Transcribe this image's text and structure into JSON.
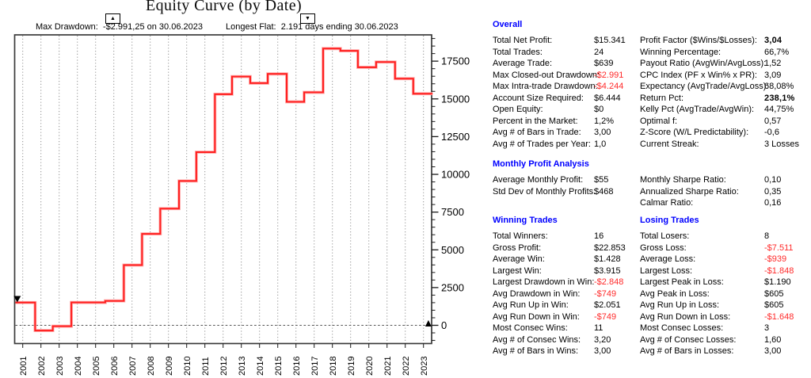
{
  "chart": {
    "title": "Equity Curve (by Date)",
    "annotations": {
      "max_drawdown": {
        "marker": "▲",
        "text": "Max Drawdown:  -$2.991,25 on 30.06.2023"
      },
      "longest_flat": {
        "marker": "▼",
        "text": "Longest Flat:  2.191 days ending 30.06.2023"
      }
    }
  },
  "chart_data": {
    "type": "line",
    "subtype": "step-equity-curve",
    "title": "Equity Curve (by Date)",
    "line_color": "#ff1f1f",
    "grid": "vertical dotted gridline per year; dashed horizontal line at 0",
    "legend_position": "none",
    "x_ticks": [
      2001,
      2002,
      2003,
      2004,
      2005,
      2006,
      2007,
      2008,
      2009,
      2010,
      2011,
      2012,
      2013,
      2014,
      2015,
      2016,
      2017,
      2018,
      2019,
      2020,
      2021,
      2022,
      2023
    ],
    "y_ticks": [
      0,
      2500,
      5000,
      7500,
      10000,
      12500,
      15000,
      17500
    ],
    "y_minor_step": 500,
    "xlim": [
      2000.55,
      2023.55
    ],
    "ylim": [
      -1200,
      19240
    ],
    "steps": [
      [
        2000.6,
        1510
      ],
      [
        2001.68,
        -349
      ],
      [
        2002.65,
        -62
      ],
      [
        2003.67,
        1513
      ],
      [
        2005.53,
        1617
      ],
      [
        2006.55,
        3990
      ],
      [
        2007.55,
        6059
      ],
      [
        2008.55,
        7730
      ],
      [
        2009.58,
        9560
      ],
      [
        2010.53,
        11470
      ],
      [
        2011.55,
        15311
      ],
      [
        2012.49,
        16479
      ],
      [
        2013.49,
        16043
      ],
      [
        2014.45,
        16653
      ],
      [
        2015.49,
        14805
      ],
      [
        2016.45,
        15432
      ],
      [
        2017.49,
        18332
      ],
      [
        2018.44,
        18184
      ],
      [
        2019.4,
        17092
      ],
      [
        2020.4,
        17443
      ],
      [
        2021.44,
        16343
      ],
      [
        2022.44,
        15341
      ]
    ],
    "end_x": 2023.5,
    "final_value": 15341,
    "markers": [
      {
        "shape": "down-triangle",
        "x": 2000.7,
        "v": 1730
      },
      {
        "shape": "up-triangle",
        "x": 2023.27,
        "v": 105
      }
    ]
  },
  "colors": {
    "header": "#0000ff",
    "negative": "#ff2a2a",
    "curve": "#ff1f1f"
  },
  "stats_sections": [
    {
      "columns": [
        {
          "header": "Overall",
          "rows": [
            {
              "label": "Total Net Profit:",
              "value": "$15.341"
            },
            {
              "label": "Total Trades:",
              "value": "24"
            },
            {
              "label": "Average Trade:",
              "value": "$639"
            },
            {
              "label": "Max Closed-out Drawdown:",
              "value": "-$2.991",
              "neg": true
            },
            {
              "label": "Max Intra-trade Drawdown:",
              "value": "-$4.244",
              "neg": true
            },
            {
              "label": "Account Size Required:",
              "value": "$6.444"
            },
            {
              "label": "Open Equity:",
              "value": "$0"
            },
            {
              "label": "Percent in the Market:",
              "value": "1,2%"
            },
            {
              "label": "Avg # of Bars in Trade:",
              "value": "3,00"
            },
            {
              "label": "Avg # of Trades per Year:",
              "value": "1,0"
            }
          ]
        },
        {
          "header": "",
          "rows": [
            {
              "label": "Profit Factor ($Wins/$Losses):",
              "value": "3,04",
              "bold": true
            },
            {
              "label": "Winning Percentage:",
              "value": "66,7%"
            },
            {
              "label": "Payout Ratio (AvgWin/AvgLoss):",
              "value": "1,52"
            },
            {
              "label": "CPC Index (PF x Win% x PR):",
              "value": "3,09"
            },
            {
              "label": "Expectancy (AvgTrade/AvgLoss):",
              "value": "68,08%"
            },
            {
              "label": "Return Pct:",
              "value": "238,1%",
              "bold": true
            },
            {
              "label": "Kelly Pct (AvgTrade/AvgWin):",
              "value": "44,75%"
            },
            {
              "label": "Optimal f:",
              "value": "0,57"
            },
            {
              "label": "Z-Score (W/L Predictability):",
              "value": "-0,6"
            },
            {
              "label": "Current Streak:",
              "value": "3 Losses"
            }
          ]
        }
      ]
    },
    {
      "columns": [
        {
          "header": "Monthly Profit Analysis",
          "rows": [
            {
              "label": "Average Monthly Profit:",
              "value": "$55"
            },
            {
              "label": "Std Dev of Monthly Profits:",
              "value": "$468"
            }
          ]
        },
        {
          "header": "",
          "rows": [
            {
              "label": "Monthly Sharpe Ratio:",
              "value": "0,10"
            },
            {
              "label": "Annualized Sharpe Ratio:",
              "value": "0,35"
            },
            {
              "label": "Calmar Ratio:",
              "value": "0,16"
            }
          ]
        }
      ]
    },
    {
      "columns": [
        {
          "header": "Winning Trades",
          "rows": [
            {
              "label": "Total Winners:",
              "value": "16"
            },
            {
              "label": "Gross Profit:",
              "value": "$22.853"
            },
            {
              "label": "Average Win:",
              "value": "$1.428"
            },
            {
              "label": "Largest Win:",
              "value": "$3.915"
            },
            {
              "label": "Largest Drawdown in Win:",
              "value": "-$2.848",
              "neg": true
            },
            {
              "label": "Avg Drawdown in Win:",
              "value": "-$749",
              "neg": true
            },
            {
              "label": "Avg Run Up in Win:",
              "value": "$2.051"
            },
            {
              "label": "Avg Run Down in Win:",
              "value": "-$749",
              "neg": true
            },
            {
              "label": "Most Consec Wins:",
              "value": "11"
            },
            {
              "label": "Avg # of Consec Wins:",
              "value": "3,20"
            },
            {
              "label": "Avg # of Bars in Wins:",
              "value": "3,00"
            }
          ]
        },
        {
          "header": "Losing Trades",
          "rows": [
            {
              "label": "Total Losers:",
              "value": "8"
            },
            {
              "label": "Gross Loss:",
              "value": "-$7.511",
              "neg": true
            },
            {
              "label": "Average Loss:",
              "value": "-$939",
              "neg": true
            },
            {
              "label": "Largest Loss:",
              "value": "-$1.848",
              "neg": true
            },
            {
              "label": "Largest Peak in Loss:",
              "value": "$1.190"
            },
            {
              "label": "Avg Peak in Loss:",
              "value": "$605"
            },
            {
              "label": "Avg Run Up in Loss:",
              "value": "$605"
            },
            {
              "label": "Avg Run Down in Loss:",
              "value": "-$1.648",
              "neg": true
            },
            {
              "label": "Most Consec Losses:",
              "value": "3"
            },
            {
              "label": "Avg # of Consec Losses:",
              "value": "1,60"
            },
            {
              "label": "Avg # of Bars in Losses:",
              "value": "3,00"
            }
          ]
        }
      ]
    }
  ]
}
